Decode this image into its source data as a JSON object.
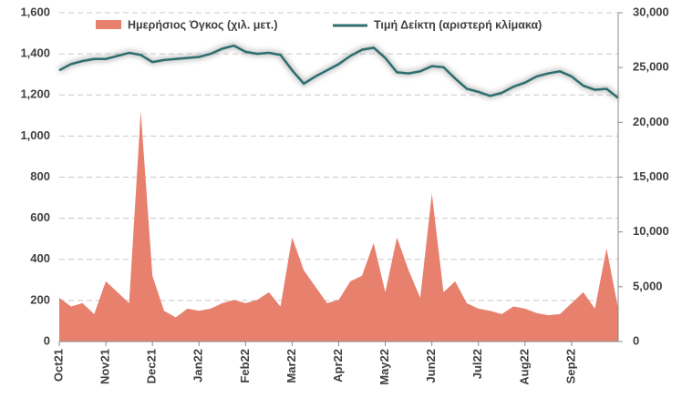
{
  "chart_data": {
    "type": "area-line",
    "categories": [
      "Oct21",
      null,
      null,
      null,
      "Nov21",
      null,
      null,
      null,
      "Dec21",
      null,
      null,
      null,
      "Jan22",
      null,
      null,
      null,
      "Feb22",
      null,
      null,
      null,
      "Mar22",
      null,
      null,
      null,
      "Apr22",
      null,
      null,
      null,
      "May22",
      null,
      null,
      null,
      "Jun22",
      null,
      null,
      null,
      "Jul22",
      null,
      null,
      null,
      "Aug22",
      null,
      null,
      null,
      "Sep22",
      null,
      null,
      null,
      null
    ],
    "series": [
      {
        "name": "Ημερήσιος Όγκος (χιλ. μετ.)",
        "color": "#e8806e",
        "axis": "y2",
        "values": [
          4000,
          3200,
          3500,
          2500,
          5500,
          4500,
          3500,
          21000,
          6000,
          2800,
          2200,
          3000,
          2800,
          3000,
          3500,
          3800,
          3500,
          3800,
          4500,
          3200,
          9500,
          6500,
          5000,
          3500,
          3800,
          5500,
          6000,
          9000,
          4500,
          9500,
          6500,
          4000,
          13500,
          4500,
          5500,
          3500,
          3000,
          2800,
          2500,
          3200,
          3000,
          2600,
          2400,
          2500,
          3500,
          4500,
          3000,
          8500,
          3000
        ]
      },
      {
        "name": "Τιμή Δείκτη (αριστερή κλίμακα)",
        "color": "#2d6e6e",
        "values": [
          1320,
          1350,
          1365,
          1375,
          1375,
          1390,
          1405,
          1395,
          1360,
          1370,
          1375,
          1380,
          1385,
          1400,
          1425,
          1440,
          1410,
          1400,
          1405,
          1395,
          1320,
          1255,
          1290,
          1320,
          1350,
          1390,
          1420,
          1430,
          1380,
          1310,
          1305,
          1315,
          1340,
          1335,
          1280,
          1230,
          1215,
          1195,
          1210,
          1240,
          1260,
          1290,
          1305,
          1315,
          1290,
          1245,
          1225,
          1230,
          1185
        ]
      }
    ],
    "ylim": [
      0,
      1600
    ],
    "yticks": [
      0,
      200,
      400,
      600,
      800,
      {
        "value": 1000,
        "label": "1,000"
      },
      {
        "value": 1200,
        "label": "1,200"
      },
      {
        "value": 1400,
        "label": "1,400"
      },
      {
        "value": 1600,
        "label": "1,600"
      }
    ],
    "y2lim": [
      0,
      30000
    ],
    "y2ticks": [
      0,
      {
        "value": 5000,
        "label": "5,000"
      },
      {
        "value": 10000,
        "label": "10,000"
      },
      {
        "value": 15000,
        "label": "15,000"
      },
      {
        "value": 20000,
        "label": "20,000"
      },
      {
        "value": 25000,
        "label": "25,000"
      },
      {
        "value": 30000,
        "label": "30,000"
      }
    ],
    "grid": true,
    "legend": "top"
  }
}
